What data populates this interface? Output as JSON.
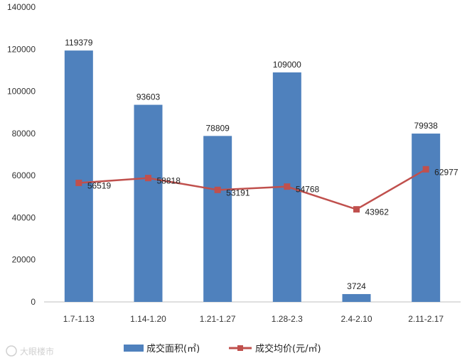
{
  "chart_data": {
    "type": "bar",
    "categories": [
      "1.7-1.13",
      "1.14-1.20",
      "1.21-1.27",
      "1.28-2.3",
      "2.4-2.10",
      "2.11-2.17"
    ],
    "series": [
      {
        "name": "成交面积(㎡)",
        "type": "bar",
        "values": [
          119379,
          93603,
          78809,
          109000,
          3724,
          79938
        ],
        "color": "#4f81bd"
      },
      {
        "name": "成交均价(元/㎡)",
        "type": "line",
        "values": [
          56519,
          58818,
          53191,
          54768,
          43962,
          62977
        ],
        "color": "#c0504d"
      }
    ],
    "ylim": [
      0,
      140000
    ],
    "yticks": [
      0,
      20000,
      40000,
      60000,
      80000,
      100000,
      120000,
      140000
    ],
    "grid": false,
    "legend": "bottom"
  },
  "watermark": "大眼楼市"
}
